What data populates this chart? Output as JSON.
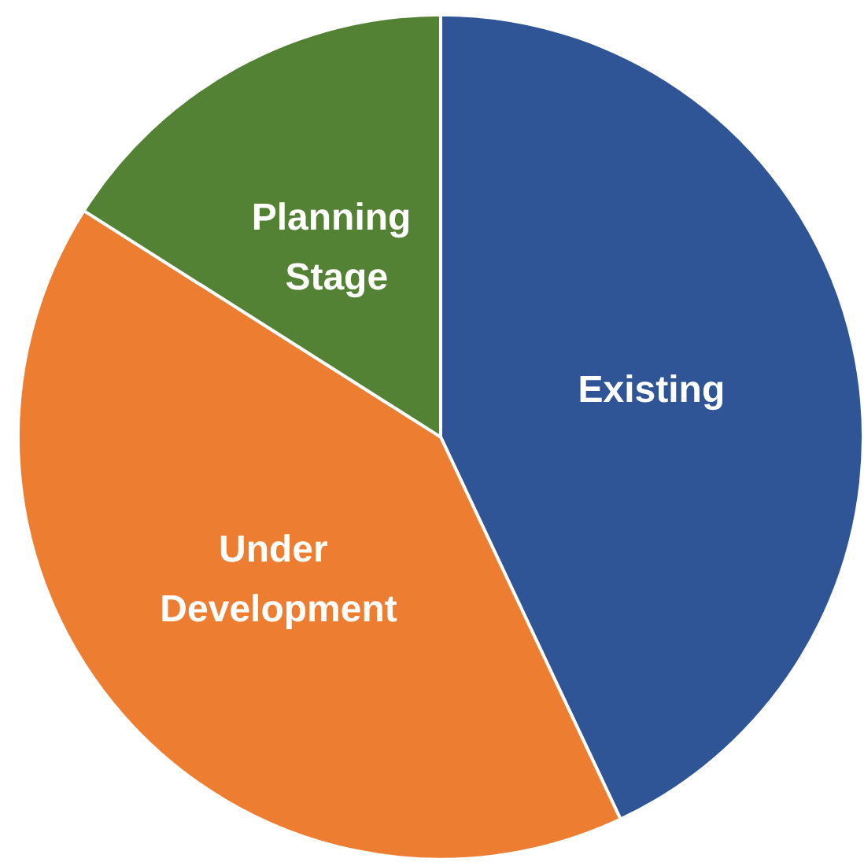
{
  "chart_data": {
    "type": "pie",
    "categories": [
      "Existing",
      "Under Development",
      "Planning Stage"
    ],
    "values": [
      43,
      41,
      16
    ],
    "colors": [
      "#2f5597",
      "#ed7d31",
      "#548235"
    ],
    "legend": false
  }
}
